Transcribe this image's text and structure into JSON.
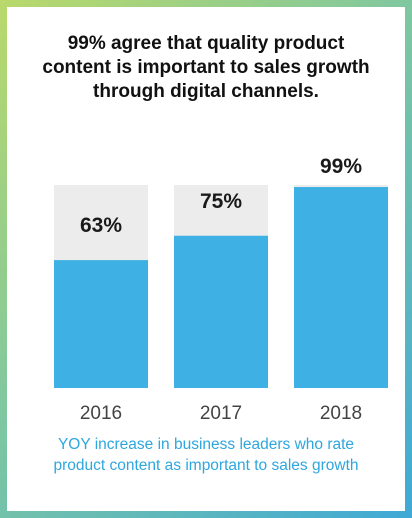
{
  "title_lines": [
    "99% agree that quality product",
    "content is important to sales growth",
    "through digital channels."
  ],
  "caption_lines": [
    "YOY increase in business leaders who rate",
    "product content as important to sales growth"
  ],
  "colors": {
    "bar": "#3fb0e3",
    "track": "#ececec",
    "value_label": "#1a1a1a",
    "category_label": "#444444",
    "caption": "#2ea6df"
  },
  "chart_data": {
    "type": "bar",
    "categories": [
      "2016",
      "2017",
      "2018"
    ],
    "values": [
      63,
      75,
      99
    ],
    "value_labels": [
      "63%",
      "75%",
      "99%"
    ],
    "ylim": [
      0,
      100
    ],
    "title": "99% agree that quality product content is important to sales growth through digital channels.",
    "xlabel": "",
    "ylabel": "",
    "grid": false,
    "legend": "none"
  }
}
